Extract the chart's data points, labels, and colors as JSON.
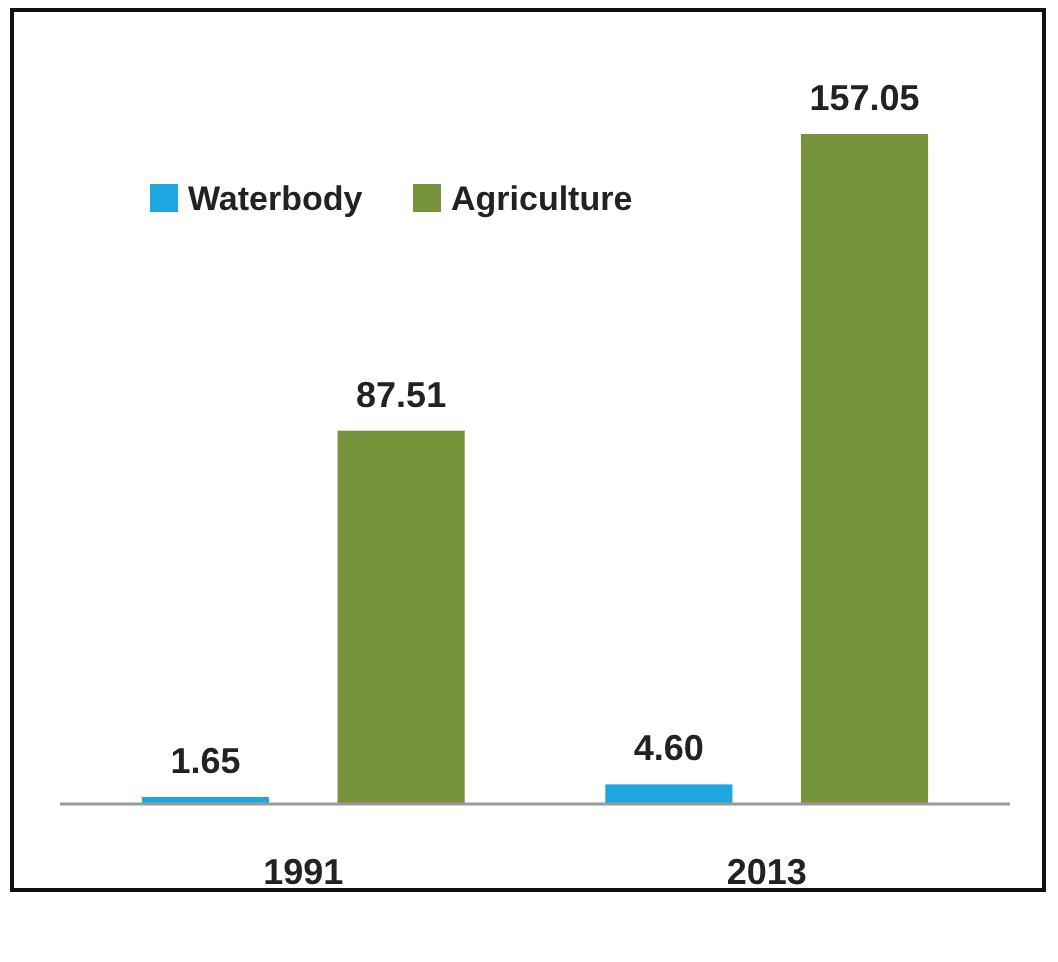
{
  "chart_data": {
    "type": "bar",
    "categories": [
      "1991",
      "2013"
    ],
    "series": [
      {
        "name": "Waterbody",
        "color": "#1fa8e0",
        "values": [
          1.65,
          4.6
        ],
        "value_labels": [
          "1.65",
          "4.60"
        ]
      },
      {
        "name": "Agriculture",
        "color": "#77933c",
        "values": [
          87.51,
          157.05
        ],
        "value_labels": [
          "87.51",
          "157.05"
        ]
      }
    ],
    "legend": "top left"
  }
}
